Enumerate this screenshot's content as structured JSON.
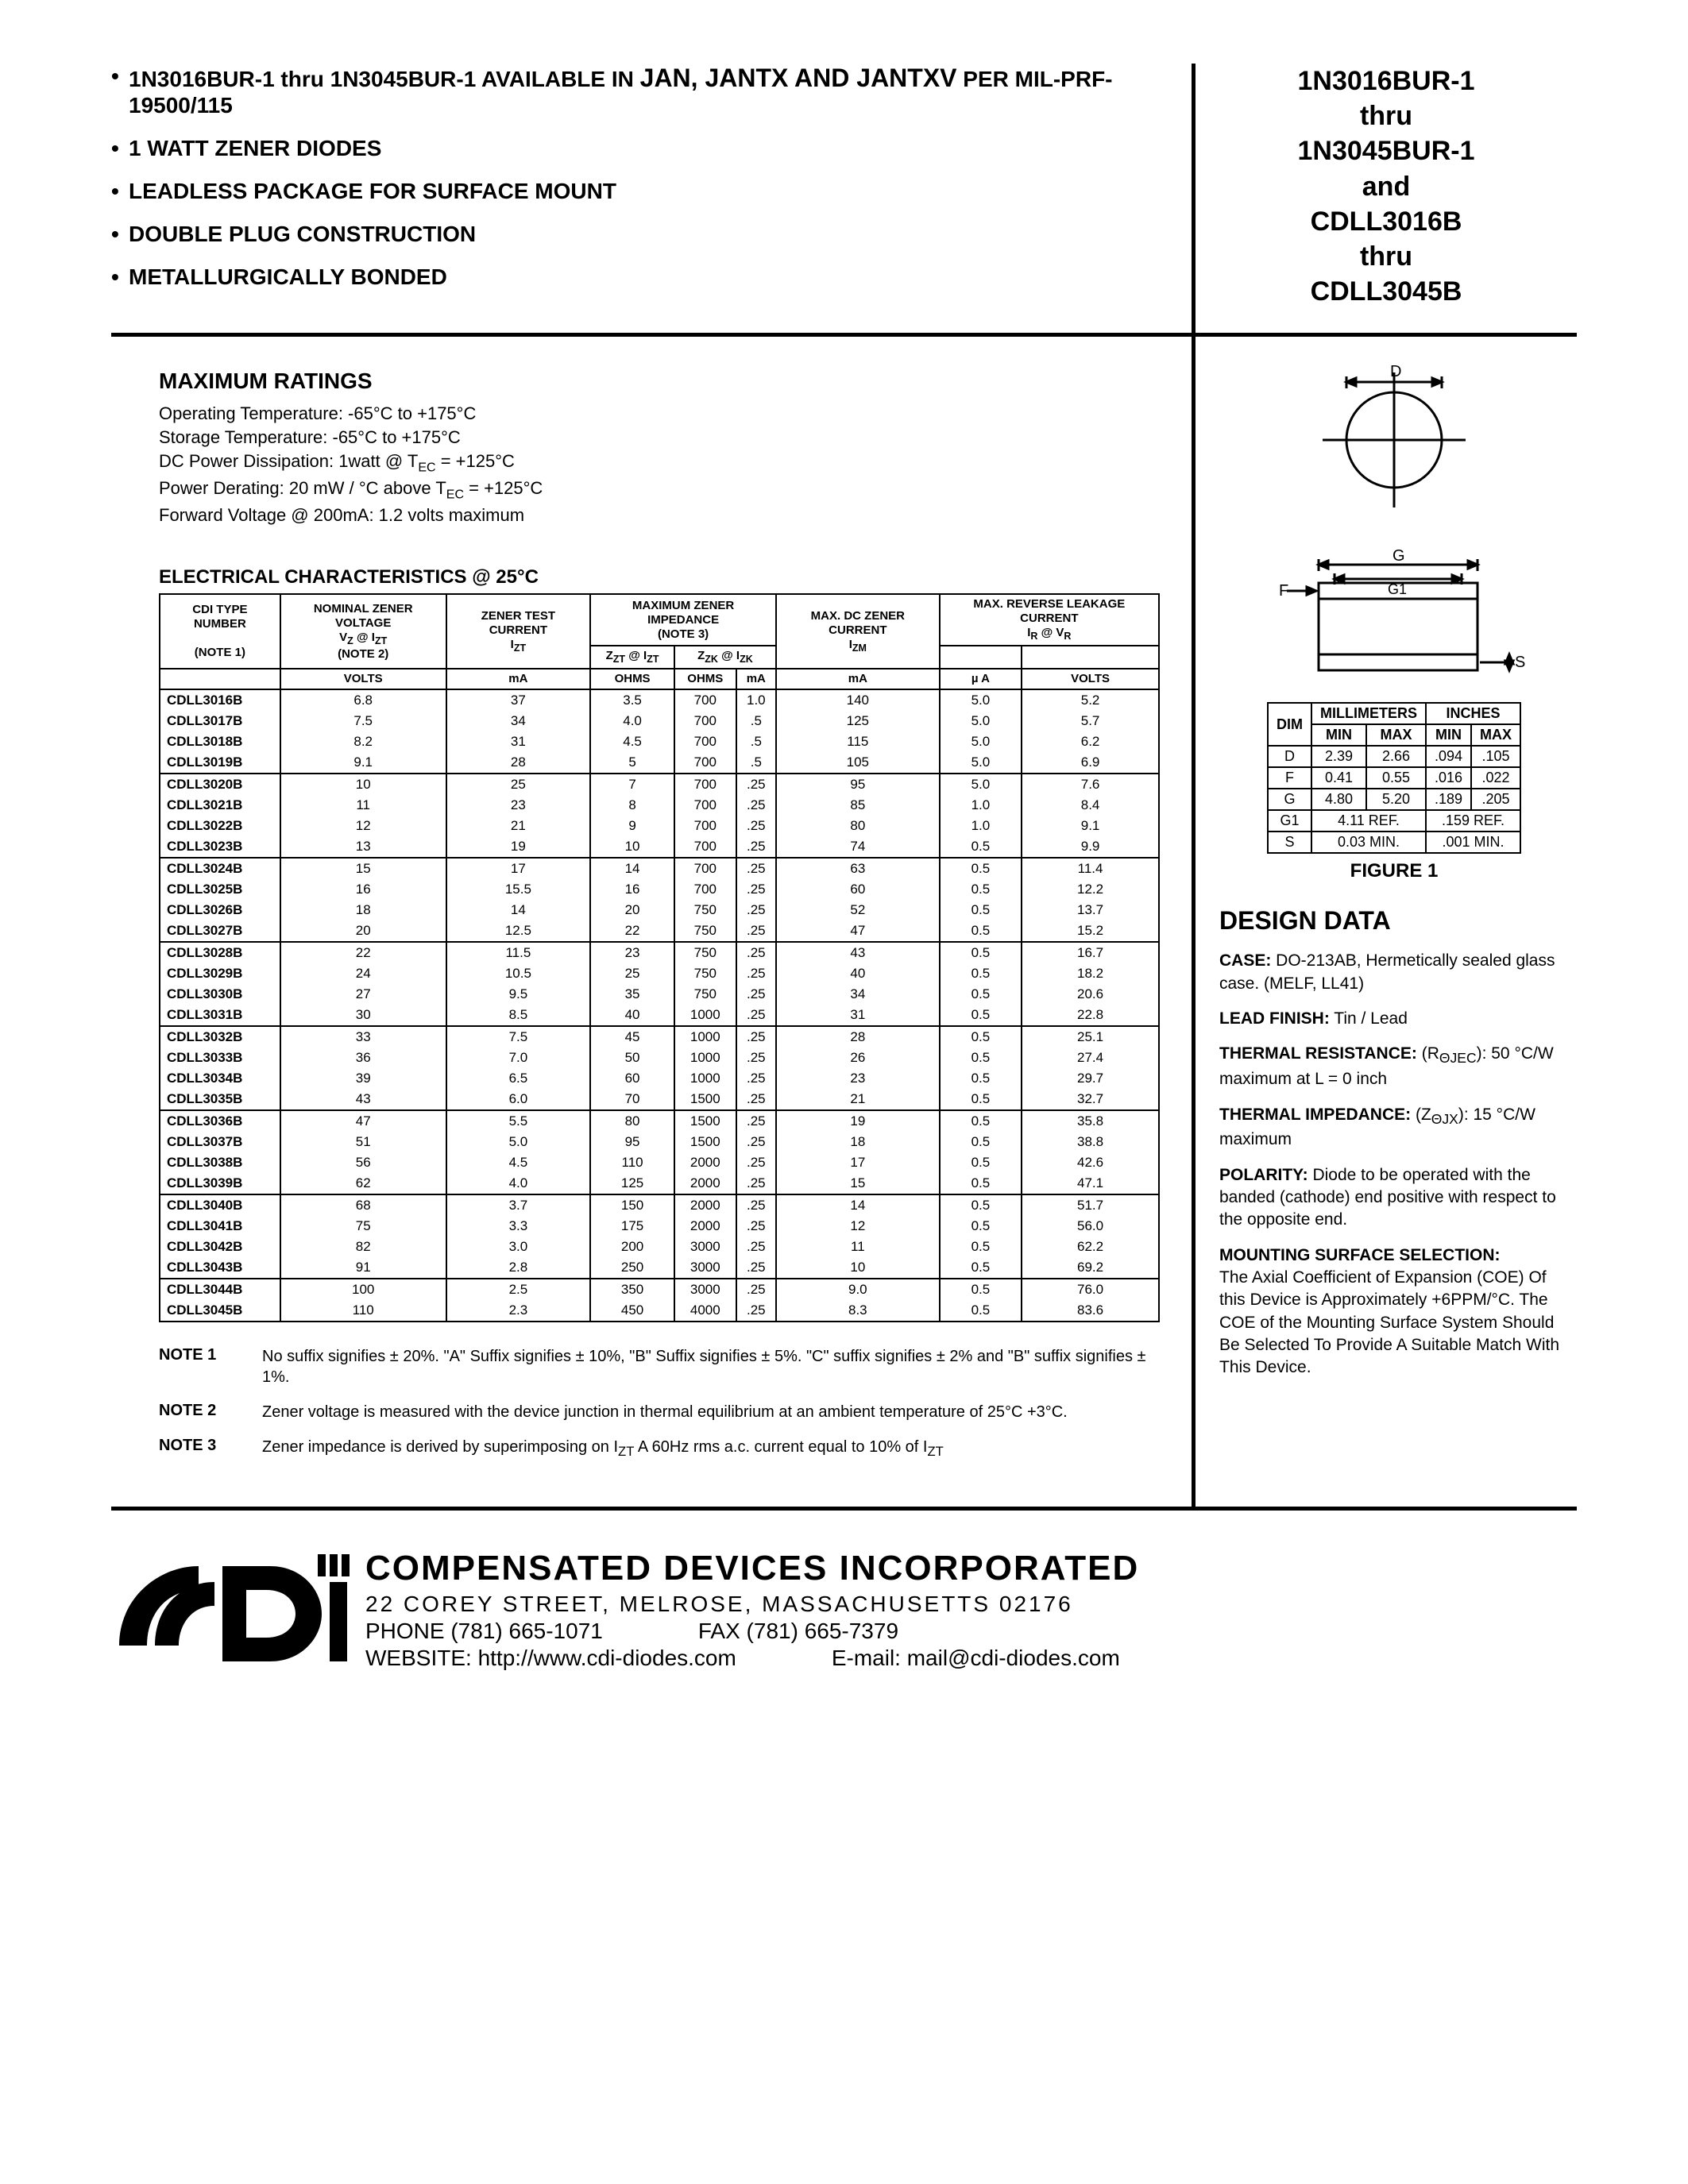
{
  "header": {
    "bullets": [
      {
        "prefix": "1N3016BUR-1 thru 1N3045BUR-1 AVAILABLE IN ",
        "big": "JAN, JANTX AND JANTXV",
        "suffix": " PER MIL-PRF-19500/115"
      },
      {
        "prefix": "1 WATT ZENER DIODES",
        "big": "",
        "suffix": ""
      },
      {
        "prefix": "LEADLESS PACKAGE FOR SURFACE MOUNT",
        "big": "",
        "suffix": ""
      },
      {
        "prefix": "DOUBLE PLUG CONSTRUCTION",
        "big": "",
        "suffix": ""
      },
      {
        "prefix": "METALLURGICALLY BONDED",
        "big": "",
        "suffix": ""
      }
    ],
    "title_lines": [
      "1N3016BUR-1",
      "thru",
      "1N3045BUR-1",
      "and",
      "CDLL3016B",
      "thru",
      "CDLL3045B"
    ]
  },
  "max_ratings": {
    "title": "MAXIMUM RATINGS",
    "lines": [
      "Operating Temperature:  -65°C to +175°C",
      "Storage Temperature:  -65°C to +175°C",
      "DC Power Dissipation:  1watt @ T<sub>EC</sub> = +125°C",
      "Power Derating: 20 mW / °C above T<sub>EC</sub> = +125°C",
      "Forward Voltage @ 200mA: 1.2 volts maximum"
    ]
  },
  "elec_title": "ELECTRICAL CHARACTERISTICS @ 25°C",
  "elec_headers": {
    "col1": "CDI TYPE NUMBER",
    "col1_note": "(NOTE 1)",
    "col2": "NOMINAL ZENER VOLTAGE",
    "col2_sym": "V<sub>Z</sub> @ I<sub>ZT</sub>",
    "col2_note": "(NOTE 2)",
    "col3": "ZENER TEST CURRENT",
    "col3_sym": "I<sub>ZT</sub>",
    "col4": "MAXIMUM  ZENER IMPEDANCE",
    "col4_note": "(NOTE 3)",
    "col4a": "Z<sub>ZT</sub>  @ I<sub>ZT</sub>",
    "col4b": "Z<sub>ZK</sub> @ I<sub>ZK</sub>",
    "col5": "MAX. DC ZENER CURRENT",
    "col5_sym": "I<sub>ZM</sub>",
    "col6": "MAX. REVERSE LEAKAGE CURRENT",
    "col6_sym": "I<sub>R</sub> @ V<sub>R</sub>",
    "units": [
      "",
      "VOLTS",
      "mA",
      "OHMS",
      "OHMS",
      "mA",
      "mA",
      "µ A",
      "VOLTS"
    ]
  },
  "elec_rows": [
    {
      "g": 1,
      "pn": "CDLL3016B",
      "vz": "6.8",
      "izt": "37",
      "zzt": "3.5",
      "zzk": "700",
      "izk": "1.0",
      "izm": "140",
      "ir": "5.0",
      "vr": "5.2"
    },
    {
      "g": 1,
      "pn": "CDLL3017B",
      "vz": "7.5",
      "izt": "34",
      "zzt": "4.0",
      "zzk": "700",
      "izk": ".5",
      "izm": "125",
      "ir": "5.0",
      "vr": "5.7"
    },
    {
      "g": 1,
      "pn": "CDLL3018B",
      "vz": "8.2",
      "izt": "31",
      "zzt": "4.5",
      "zzk": "700",
      "izk": ".5",
      "izm": "115",
      "ir": "5.0",
      "vr": "6.2"
    },
    {
      "g": 1,
      "pn": "CDLL3019B",
      "vz": "9.1",
      "izt": "28",
      "zzt": "5",
      "zzk": "700",
      "izk": ".5",
      "izm": "105",
      "ir": "5.0",
      "vr": "6.9",
      "end": true
    },
    {
      "g": 2,
      "pn": "CDLL3020B",
      "vz": "10",
      "izt": "25",
      "zzt": "7",
      "zzk": "700",
      "izk": ".25",
      "izm": "95",
      "ir": "5.0",
      "vr": "7.6"
    },
    {
      "g": 2,
      "pn": "CDLL3021B",
      "vz": "11",
      "izt": "23",
      "zzt": "8",
      "zzk": "700",
      "izk": ".25",
      "izm": "85",
      "ir": "1.0",
      "vr": "8.4"
    },
    {
      "g": 2,
      "pn": "CDLL3022B",
      "vz": "12",
      "izt": "21",
      "zzt": "9",
      "zzk": "700",
      "izk": ".25",
      "izm": "80",
      "ir": "1.0",
      "vr": "9.1"
    },
    {
      "g": 2,
      "pn": "CDLL3023B",
      "vz": "13",
      "izt": "19",
      "zzt": "10",
      "zzk": "700",
      "izk": ".25",
      "izm": "74",
      "ir": "0.5",
      "vr": "9.9",
      "end": true
    },
    {
      "g": 3,
      "pn": "CDLL3024B",
      "vz": "15",
      "izt": "17",
      "zzt": "14",
      "zzk": "700",
      "izk": ".25",
      "izm": "63",
      "ir": "0.5",
      "vr": "11.4"
    },
    {
      "g": 3,
      "pn": "CDLL3025B",
      "vz": "16",
      "izt": "15.5",
      "zzt": "16",
      "zzk": "700",
      "izk": ".25",
      "izm": "60",
      "ir": "0.5",
      "vr": "12.2"
    },
    {
      "g": 3,
      "pn": "CDLL3026B",
      "vz": "18",
      "izt": "14",
      "zzt": "20",
      "zzk": "750",
      "izk": ".25",
      "izm": "52",
      "ir": "0.5",
      "vr": "13.7"
    },
    {
      "g": 3,
      "pn": "CDLL3027B",
      "vz": "20",
      "izt": "12.5",
      "zzt": "22",
      "zzk": "750",
      "izk": ".25",
      "izm": "47",
      "ir": "0.5",
      "vr": "15.2",
      "end": true
    },
    {
      "g": 4,
      "pn": "CDLL3028B",
      "vz": "22",
      "izt": "11.5",
      "zzt": "23",
      "zzk": "750",
      "izk": ".25",
      "izm": "43",
      "ir": "0.5",
      "vr": "16.7"
    },
    {
      "g": 4,
      "pn": "CDLL3029B",
      "vz": "24",
      "izt": "10.5",
      "zzt": "25",
      "zzk": "750",
      "izk": ".25",
      "izm": "40",
      "ir": "0.5",
      "vr": "18.2"
    },
    {
      "g": 4,
      "pn": "CDLL3030B",
      "vz": "27",
      "izt": "9.5",
      "zzt": "35",
      "zzk": "750",
      "izk": ".25",
      "izm": "34",
      "ir": "0.5",
      "vr": "20.6"
    },
    {
      "g": 4,
      "pn": "CDLL3031B",
      "vz": "30",
      "izt": "8.5",
      "zzt": "40",
      "zzk": "1000",
      "izk": ".25",
      "izm": "31",
      "ir": "0.5",
      "vr": "22.8",
      "end": true
    },
    {
      "g": 5,
      "pn": "CDLL3032B",
      "vz": "33",
      "izt": "7.5",
      "zzt": "45",
      "zzk": "1000",
      "izk": ".25",
      "izm": "28",
      "ir": "0.5",
      "vr": "25.1"
    },
    {
      "g": 5,
      "pn": "CDLL3033B",
      "vz": "36",
      "izt": "7.0",
      "zzt": "50",
      "zzk": "1000",
      "izk": ".25",
      "izm": "26",
      "ir": "0.5",
      "vr": "27.4"
    },
    {
      "g": 5,
      "pn": "CDLL3034B",
      "vz": "39",
      "izt": "6.5",
      "zzt": "60",
      "zzk": "1000",
      "izk": ".25",
      "izm": "23",
      "ir": "0.5",
      "vr": "29.7"
    },
    {
      "g": 5,
      "pn": "CDLL3035B",
      "vz": "43",
      "izt": "6.0",
      "zzt": "70",
      "zzk": "1500",
      "izk": ".25",
      "izm": "21",
      "ir": "0.5",
      "vr": "32.7",
      "end": true
    },
    {
      "g": 6,
      "pn": "CDLL3036B",
      "vz": "47",
      "izt": "5.5",
      "zzt": "80",
      "zzk": "1500",
      "izk": ".25",
      "izm": "19",
      "ir": "0.5",
      "vr": "35.8"
    },
    {
      "g": 6,
      "pn": "CDLL3037B",
      "vz": "51",
      "izt": "5.0",
      "zzt": "95",
      "zzk": "1500",
      "izk": ".25",
      "izm": "18",
      "ir": "0.5",
      "vr": "38.8"
    },
    {
      "g": 6,
      "pn": "CDLL3038B",
      "vz": "56",
      "izt": "4.5",
      "zzt": "110",
      "zzk": "2000",
      "izk": ".25",
      "izm": "17",
      "ir": "0.5",
      "vr": "42.6"
    },
    {
      "g": 6,
      "pn": "CDLL3039B",
      "vz": "62",
      "izt": "4.0",
      "zzt": "125",
      "zzk": "2000",
      "izk": ".25",
      "izm": "15",
      "ir": "0.5",
      "vr": "47.1",
      "end": true
    },
    {
      "g": 7,
      "pn": "CDLL3040B",
      "vz": "68",
      "izt": "3.7",
      "zzt": "150",
      "zzk": "2000",
      "izk": ".25",
      "izm": "14",
      "ir": "0.5",
      "vr": "51.7"
    },
    {
      "g": 7,
      "pn": "CDLL3041B",
      "vz": "75",
      "izt": "3.3",
      "zzt": "175",
      "zzk": "2000",
      "izk": ".25",
      "izm": "12",
      "ir": "0.5",
      "vr": "56.0"
    },
    {
      "g": 7,
      "pn": "CDLL3042B",
      "vz": "82",
      "izt": "3.0",
      "zzt": "200",
      "zzk": "3000",
      "izk": ".25",
      "izm": "11",
      "ir": "0.5",
      "vr": "62.2"
    },
    {
      "g": 7,
      "pn": "CDLL3043B",
      "vz": "91",
      "izt": "2.8",
      "zzt": "250",
      "zzk": "3000",
      "izk": ".25",
      "izm": "10",
      "ir": "0.5",
      "vr": "69.2",
      "end": true
    },
    {
      "g": 8,
      "pn": "CDLL3044B",
      "vz": "100",
      "izt": "2.5",
      "zzt": "350",
      "zzk": "3000",
      "izk": ".25",
      "izm": "9.0",
      "ir": "0.5",
      "vr": "76.0"
    },
    {
      "g": 8,
      "pn": "CDLL3045B",
      "vz": "110",
      "izt": "2.3",
      "zzt": "450",
      "zzk": "4000",
      "izk": ".25",
      "izm": "8.3",
      "ir": "0.5",
      "vr": "83.6",
      "end": true
    }
  ],
  "notes": [
    {
      "label": "NOTE 1",
      "text": "No suffix signifies ± 20%. \"A\" Suffix signifies ± 10%, \"B\" Suffix signifies ± 5%. \"C\" suffix signifies ±  2% and \"B\" suffix signifies ± 1%."
    },
    {
      "label": "NOTE 2",
      "text": "Zener voltage is measured with the device junction in thermal equilibrium at an ambient  temperature of 25°C +3°C."
    },
    {
      "label": "NOTE 3",
      "text": "Zener impedance is derived by superimposing on I<sub>ZT</sub> A 60Hz rms a.c. current equal to 10% of I<sub>ZT</sub>"
    }
  ],
  "dim_table": {
    "head1": [
      "MILLIMETERS",
      "INCHES"
    ],
    "head2": [
      "DIM",
      "MIN",
      "MAX",
      "MIN",
      "MAX"
    ],
    "rows": [
      [
        "D",
        "2.39",
        "2.66",
        ".094",
        ".105"
      ],
      [
        "F",
        "0.41",
        "0.55",
        ".016",
        ".022"
      ],
      [
        "G",
        "4.80",
        "5.20",
        ".189",
        ".205"
      ],
      [
        "G1",
        "4.11 REF.",
        "",
        ".159 REF.",
        ""
      ],
      [
        "S",
        "0.03 MIN.",
        "",
        ".001 MIN.",
        ""
      ]
    ]
  },
  "figure_label": "FIGURE 1",
  "design": {
    "title": "DESIGN DATA",
    "case_label": "CASE:",
    "case_text": "  DO-213AB, Hermetically sealed glass case. (MELF, LL41)",
    "lead_label": "LEAD FINISH:",
    "lead_text": " Tin / Lead",
    "tr_label": "THERMAL RESISTANCE:",
    "tr_text": " (R<sub>ΘJEC</sub>):  50 °C/W maximum at L = 0 inch",
    "ti_label": "THERMAL IMPEDANCE:",
    "ti_text": " (Z<sub>ΘJX</sub>): 15 °C/W maximum",
    "pol_label": "POLARITY:",
    "pol_text": " Diode to be operated with the banded (cathode) end positive with respect to the opposite end.",
    "mount_label": "MOUNTING SURFACE SELECTION:",
    "mount_text": "The Axial Coefficient of Expansion (COE) Of this Device is Approximately +6PPM/°C. The COE of the Mounting Surface System Should Be Selected To Provide A Suitable Match With This Device."
  },
  "footer": {
    "company": "COMPENSATED DEVICES INCORPORATED",
    "address": "22  COREY  STREET,  MELROSE,  MASSACHUSETTS  02176",
    "phone_label": "PHONE",
    "phone": "(781) 665-1071",
    "fax_label": "FAX",
    "fax": "(781) 665-7379",
    "web_label": "WEBSITE:",
    "web": "http://www.cdi-diodes.com",
    "email_label": "E-mail:",
    "email": "mail@cdi-diodes.com"
  }
}
